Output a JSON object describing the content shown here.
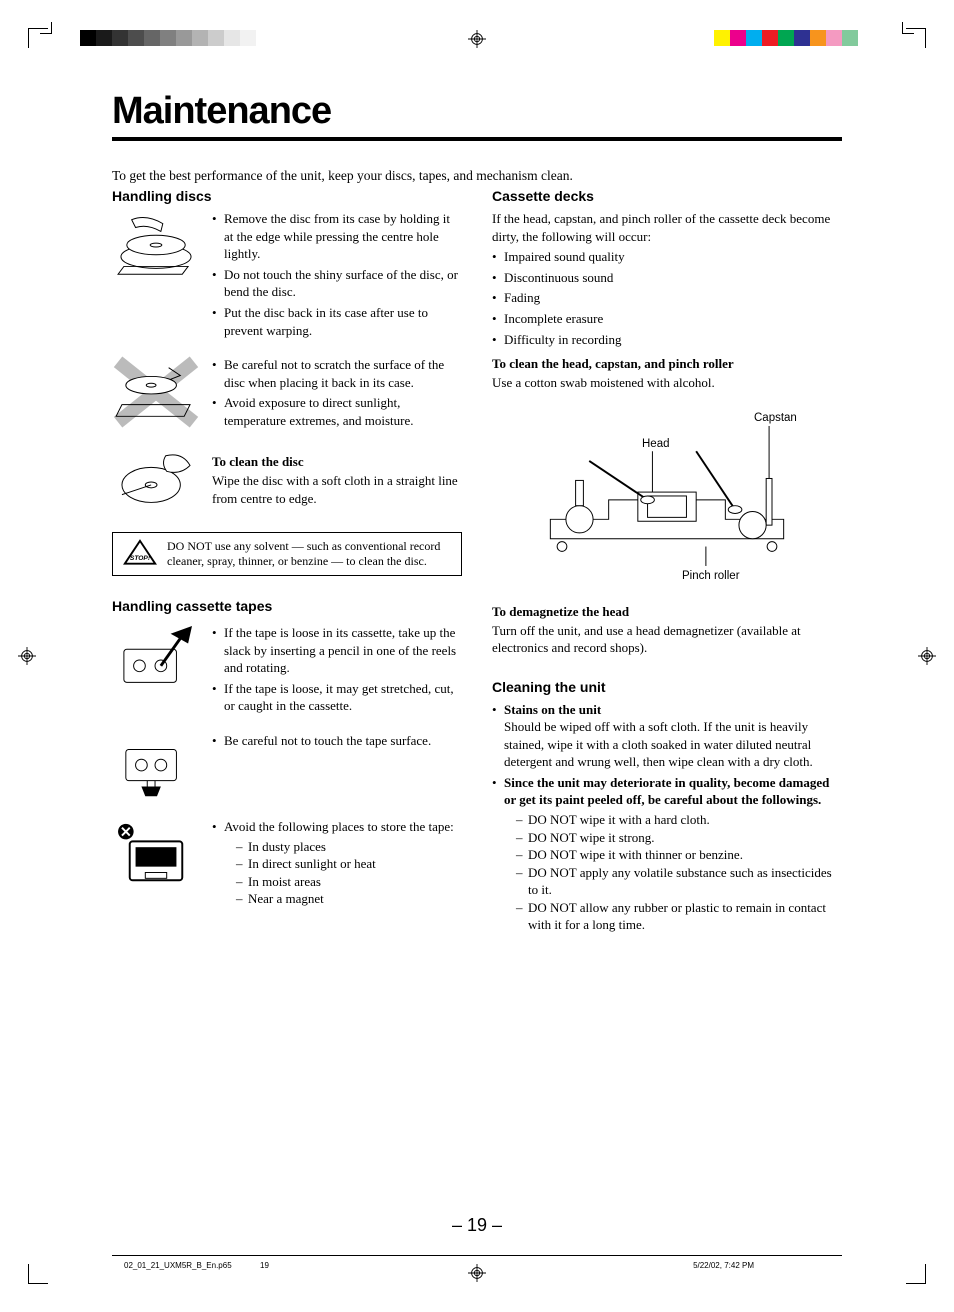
{
  "printmarks": {
    "left_bar_colors": [
      "#000000",
      "#1a1a1a",
      "#333333",
      "#4d4d4d",
      "#666666",
      "#808080",
      "#999999",
      "#b3b3b3",
      "#cccccc",
      "#e6e6e6",
      "#f2f2f2",
      "#ffffff"
    ],
    "right_bar_colors": [
      "#fff200",
      "#ec008c",
      "#00aeef",
      "#ed1c24",
      "#00a651",
      "#2e3192",
      "#f7941d",
      "#f49ac1",
      "#82ca9c",
      "#ffffff"
    ]
  },
  "title": "Maintenance",
  "intro": "To get the best performance of the unit, keep your discs, tapes, and mechanism clean.",
  "left": {
    "h1": "Handling discs",
    "b1": [
      "Remove the disc from its case by holding it at the edge while pressing the centre hole lightly.",
      "Do not touch the shiny surface of the disc, or bend the disc.",
      "Put the disc back in its case after use to prevent warping."
    ],
    "b2": [
      "Be careful not to scratch the surface of the disc when placing it back in its case.",
      "Avoid exposure to direct sunlight, temperature extremes, and moisture."
    ],
    "clean_title": "To clean the disc",
    "clean_text": "Wipe the disc with a soft cloth in a straight line from centre to edge.",
    "warning": "DO NOT use any solvent — such as conventional record cleaner, spray, thinner, or benzine — to clean the disc.",
    "h2": "Handling cassette tapes",
    "t1": [
      "If the tape is loose in its cassette, take up the slack by inserting a pencil in one of the reels and rotating.",
      "If the tape is loose, it may get stretched, cut, or caught in the cassette."
    ],
    "t2": [
      "Be careful not to touch the tape surface."
    ],
    "t3_lead": "Avoid the following places to store the tape:",
    "t3": [
      "In dusty places",
      "In direct sunlight or heat",
      "In moist areas",
      "Near a magnet"
    ]
  },
  "right": {
    "h1": "Cassette decks",
    "deck_intro": "If the head, capstan, and pinch roller of the cassette deck become dirty, the following will occur:",
    "deck_list": [
      "Impaired sound quality",
      "Discontinuous sound",
      "Fading",
      "Incomplete erasure",
      "Difficulty in recording"
    ],
    "clean_head_title": "To clean the head, capstan, and pinch roller",
    "clean_head_text": "Use a cotton swab moistened with alcohol.",
    "diagram": {
      "head": "Head",
      "capstan": "Capstan",
      "pinch": "Pinch roller"
    },
    "demag_title": "To demagnetize the head",
    "demag_text": "Turn off the unit, and use a head demagnetizer (available at electronics and record shops).",
    "h2": "Cleaning the unit",
    "stains_title": "Stains on the unit",
    "stains_text": "Should be wiped off with a soft cloth. If the unit is heavily stained, wipe it with a cloth soaked in water diluted neutral detergent and wrung well, then wipe clean with a dry cloth.",
    "deteriorate": "Since the unit may deteriorate in quality, become damaged or get its paint peeled off, be careful about the followings.",
    "donts": [
      "DO NOT wipe it with a hard cloth.",
      "DO NOT wipe it strong.",
      "DO NOT wipe it with thinner or benzine.",
      "DO NOT apply any volatile substance such as insecticides to it.",
      "DO NOT allow any rubber or plastic to remain in contact with it for a long time."
    ]
  },
  "page_number": "– 19 –",
  "footer": {
    "file": "02_01_21_UXM5R_B_En.p65",
    "pg": "19",
    "stamp": "5/22/02, 7:42 PM"
  }
}
